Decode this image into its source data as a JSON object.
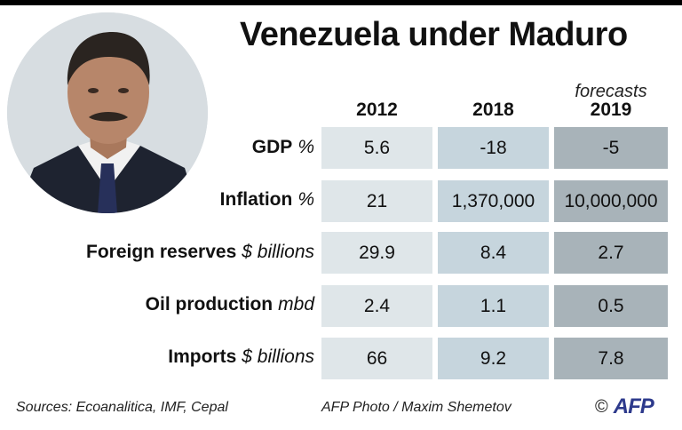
{
  "title": "Venezuela under Maduro",
  "forecast_label": "forecasts",
  "columns": [
    "2012",
    "2018",
    "2019"
  ],
  "rows": [
    {
      "label": "GDP",
      "unit": "%",
      "values": [
        "5.6",
        "-18",
        "-5"
      ]
    },
    {
      "label": "Inflation",
      "unit": "%",
      "values": [
        "21",
        "1,370,000",
        "10,000,000"
      ]
    },
    {
      "label": "Foreign reserves",
      "unit": "$ billions",
      "values": [
        "29.9",
        "8.4",
        "2.7"
      ]
    },
    {
      "label": "Oil production",
      "unit": "mbd",
      "values": [
        "2.4",
        "1.1",
        "0.5"
      ]
    },
    {
      "label": "Imports",
      "unit": "$ billions",
      "values": [
        "66",
        "9.2",
        "7.8"
      ]
    }
  ],
  "footer": {
    "sources": "Sources: Ecoanalitica, IMF, Cepal",
    "photo_credit": "AFP Photo / Maxim Shemetov",
    "copyright_symbol": "©",
    "logo": "AFP"
  },
  "colors": {
    "col_2012": "#dfe6e9",
    "col_2018": "#c6d5dd",
    "col_2019": "#a8b3b9",
    "brand": "#2d3a8c"
  }
}
